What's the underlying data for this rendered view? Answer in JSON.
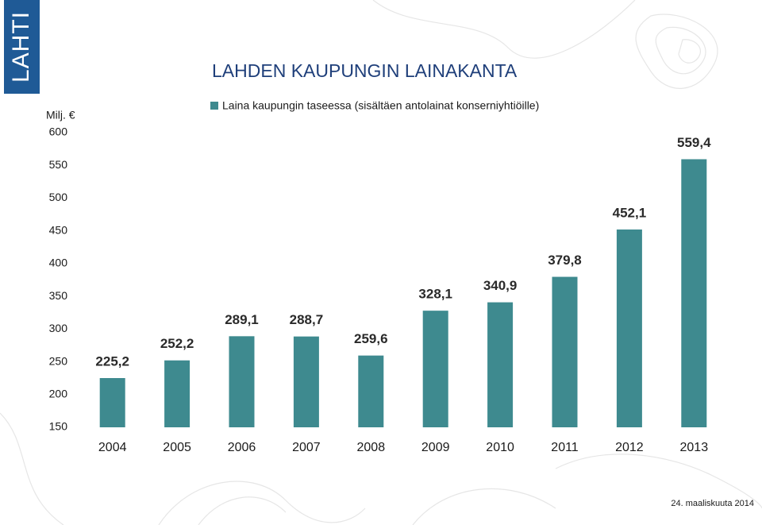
{
  "logo": "LAHTI",
  "chart_data": {
    "type": "bar",
    "title": "LAHDEN KAUPUNGIN LAINAKANTA",
    "y_axis_label": "Milj. €",
    "footer": "24. maaliskuuta 2014",
    "categories": [
      "2004",
      "2005",
      "2006",
      "2007",
      "2008",
      "2009",
      "2010",
      "2011",
      "2012",
      "2013"
    ],
    "series": [
      {
        "name": "Laina kaupungin taseessa (sisältäen antolainat konserniyhtiöille)",
        "color": "#3e8a8f",
        "values": [
          225.2,
          252.2,
          289.1,
          288.7,
          259.6,
          328.1,
          340.9,
          379.8,
          452.1,
          559.4
        ],
        "value_labels": [
          "225,2",
          "252,2",
          "289,1",
          "288,7",
          "259,6",
          "328,1",
          "340,9",
          "379,8",
          "452,1",
          "559,4"
        ]
      }
    ],
    "ylim": [
      150,
      600
    ],
    "yticks": [
      150,
      200,
      250,
      300,
      350,
      400,
      450,
      500,
      550,
      600
    ],
    "grid": false
  }
}
